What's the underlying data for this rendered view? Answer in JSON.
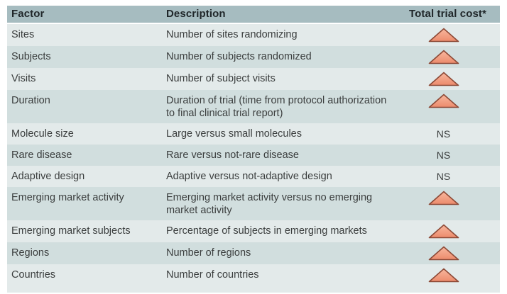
{
  "table": {
    "headers": [
      {
        "id": "factor",
        "label": "Factor"
      },
      {
        "id": "description",
        "label": "Description"
      },
      {
        "id": "cost",
        "label": "Total trial cost*"
      }
    ],
    "rows": [
      {
        "factor": "Sites",
        "description": "Number of sites randomizing",
        "cost": "increase"
      },
      {
        "factor": "Subjects",
        "description": "Number of subjects randomized",
        "cost": "increase"
      },
      {
        "factor": "Visits",
        "description": "Number of subject visits",
        "cost": "increase"
      },
      {
        "factor": "Duration",
        "description": "Duration of trial (time from protocol authorization to final clinical trial report)",
        "cost": "increase"
      },
      {
        "factor": "Molecule size",
        "description": "Large versus small molecules",
        "cost": "NS"
      },
      {
        "factor": "Rare disease",
        "description": "Rare versus not-rare disease",
        "cost": "NS"
      },
      {
        "factor": "Adaptive design",
        "description": "Adaptive versus not-adaptive design",
        "cost": "NS"
      },
      {
        "factor": "Emerging market activity",
        "description": "Emerging market activity versus no emerging market activity",
        "cost": "increase"
      },
      {
        "factor": "Emerging market subjects",
        "description": "Percentage of subjects in emerging markets",
        "cost": "increase"
      },
      {
        "factor": "Regions",
        "description": "Number of regions",
        "cost": "increase"
      },
      {
        "factor": "Countries",
        "description": "Number of countries",
        "cost": "increase"
      }
    ],
    "cost_symbols": {
      "increase": "up-triangle-icon",
      "not_significant": "NS"
    }
  },
  "colors": {
    "header_bg": "#a6bcc0",
    "header_text": "#20272a",
    "row_light": "#e3eaea",
    "row_dark": "#d1dede",
    "text": "#3b3e3e",
    "triangle_fill_top": "#f8b79e",
    "triangle_fill_bottom": "#ec8b6c",
    "triangle_stroke": "#8c4936"
  }
}
